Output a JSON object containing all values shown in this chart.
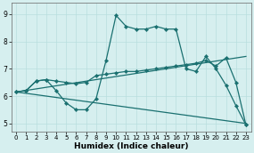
{
  "xlabel": "Humidex (Indice chaleur)",
  "xlim": [
    -0.5,
    23.5
  ],
  "ylim": [
    4.7,
    9.4
  ],
  "xticks": [
    0,
    1,
    2,
    3,
    4,
    5,
    6,
    7,
    8,
    9,
    10,
    11,
    12,
    13,
    14,
    15,
    16,
    17,
    18,
    19,
    20,
    21,
    22,
    23
  ],
  "yticks": [
    5,
    6,
    7,
    8,
    9
  ],
  "bg_color": "#d6efef",
  "line_color": "#1a7070",
  "grid_color": "#b8dede",
  "line1_x": [
    0,
    1,
    2,
    3,
    4,
    5,
    6,
    7,
    8,
    9,
    10,
    11,
    12,
    13,
    14,
    15,
    16,
    17,
    18,
    19,
    20,
    21,
    22,
    23
  ],
  "line1_y": [
    6.15,
    6.2,
    6.55,
    6.6,
    6.2,
    5.75,
    5.5,
    5.5,
    5.9,
    7.3,
    8.95,
    8.55,
    8.45,
    8.45,
    8.55,
    8.45,
    8.45,
    7.0,
    6.9,
    7.45,
    7.0,
    6.4,
    5.65,
    4.95
  ],
  "line2_x": [
    0,
    23
  ],
  "line2_y": [
    6.15,
    7.45
  ],
  "line3_x": [
    0,
    23
  ],
  "line3_y": [
    6.15,
    5.0
  ],
  "line4_x": [
    0,
    1,
    2,
    3,
    4,
    5,
    6,
    7,
    8,
    9,
    10,
    11,
    12,
    13,
    14,
    15,
    16,
    17,
    18,
    19,
    20,
    21,
    22,
    23
  ],
  "line4_y": [
    6.15,
    6.2,
    6.55,
    6.6,
    6.55,
    6.5,
    6.45,
    6.5,
    6.75,
    6.8,
    6.85,
    6.9,
    6.9,
    6.95,
    7.0,
    7.05,
    7.1,
    7.15,
    7.2,
    7.3,
    7.1,
    7.4,
    6.5,
    4.95
  ]
}
